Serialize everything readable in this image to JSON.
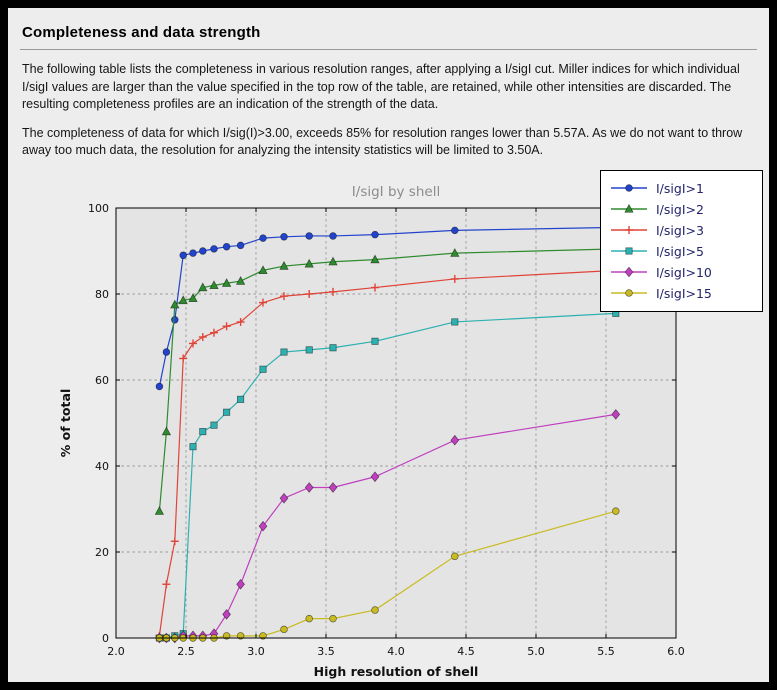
{
  "page": {
    "title": "Completeness and data strength",
    "paragraph1": "The following table lists the completeness in various resolution ranges, after applying a I/sigI cut. Miller indices for which individual I/sigI values are larger than the value specified in the top row of the table, are retained, while other intensities are discarded. The resulting completeness profiles are an indication of the strength of the data.",
    "paragraph2": "The completeness of data for which I/sig(I)>3.00, exceeds  85% for resolution ranges lower than 5.57A. As we do not want to throw away too much data, the resolution for analyzing the intensity statistics will be limited to 3.50A.",
    "colors": {
      "panel_background": "#ededed",
      "frame": "#000000"
    }
  },
  "chart_data": {
    "type": "line",
    "title": "I/sigI by shell",
    "xlabel": "High resolution of shell",
    "ylabel": "% of total",
    "xlim": [
      2.0,
      6.0
    ],
    "ylim": [
      0,
      100
    ],
    "x_ticks": [
      "2.0",
      "2.5",
      "3.0",
      "3.5",
      "4.0",
      "4.5",
      "5.0",
      "5.5",
      "6.0"
    ],
    "y_ticks": [
      "0",
      "20",
      "40",
      "60",
      "80",
      "100"
    ],
    "grid": "dashed",
    "legend_position": "upper right",
    "plot_background": "#e4e4e4",
    "x": [
      2.31,
      2.36,
      2.42,
      2.48,
      2.55,
      2.62,
      2.7,
      2.79,
      2.89,
      3.05,
      3.2,
      3.38,
      3.55,
      3.85,
      4.42,
      5.57
    ],
    "series": [
      {
        "name": "I/sigI>1",
        "color": "#2244cc",
        "marker": "circle",
        "values": [
          58.5,
          66.5,
          74.0,
          89.0,
          89.5,
          90.0,
          90.5,
          91.0,
          91.3,
          93.0,
          93.3,
          93.5,
          93.5,
          93.8,
          94.8,
          95.5
        ]
      },
      {
        "name": "I/sigI>2",
        "color": "#2e8b2e",
        "marker": "triangle",
        "values": [
          29.5,
          48.0,
          77.5,
          78.5,
          79.0,
          81.5,
          82.0,
          82.5,
          83.0,
          85.5,
          86.5,
          87.0,
          87.5,
          88.0,
          89.5,
          90.5
        ]
      },
      {
        "name": "I/sigI>3",
        "color": "#e04438",
        "marker": "plus",
        "values": [
          0.5,
          12.5,
          22.5,
          65.0,
          68.5,
          70.0,
          71.0,
          72.5,
          73.5,
          78.0,
          79.5,
          80.0,
          80.5,
          81.5,
          83.5,
          85.5
        ]
      },
      {
        "name": "I/sigI>5",
        "color": "#2fb0b0",
        "marker": "square",
        "values": [
          0.0,
          0.0,
          0.5,
          1.0,
          44.5,
          48.0,
          49.5,
          52.5,
          55.5,
          62.5,
          66.5,
          67.0,
          67.5,
          69.0,
          73.5,
          75.5
        ]
      },
      {
        "name": "I/sigI>10",
        "color": "#bf40bf",
        "marker": "diamond",
        "values": [
          0.0,
          0.0,
          0.0,
          0.5,
          0.5,
          0.5,
          1.0,
          5.5,
          12.5,
          26.0,
          32.5,
          35.0,
          35.0,
          37.5,
          46.0,
          52.0
        ]
      },
      {
        "name": "I/sigI>15",
        "color": "#c9bb22",
        "marker": "circle",
        "values": [
          0.0,
          0.0,
          0.0,
          0.0,
          0.0,
          0.0,
          0.0,
          0.5,
          0.5,
          0.5,
          2.0,
          4.5,
          4.5,
          6.5,
          19.0,
          29.5
        ]
      }
    ]
  }
}
